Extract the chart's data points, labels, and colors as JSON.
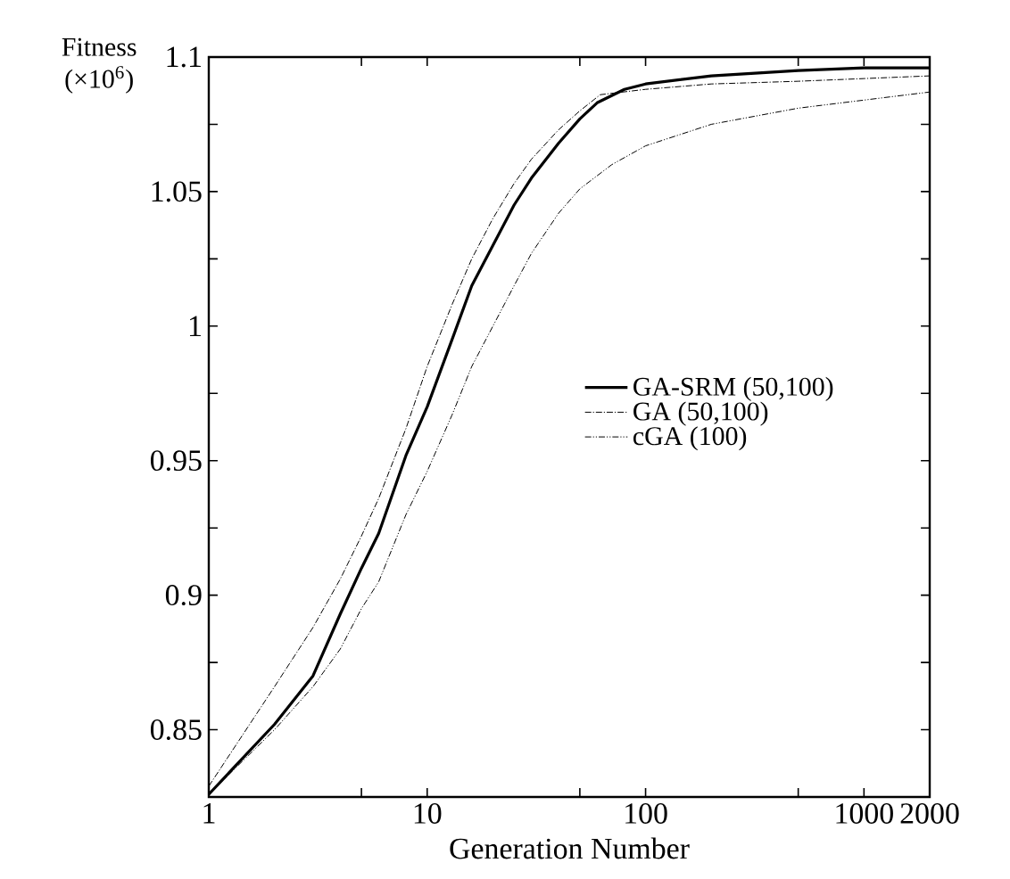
{
  "chart_data": {
    "type": "line",
    "xlabel": "Generation Number",
    "ylabel": "Fitness (×10$^{6}$)",
    "log": "x",
    "xlim": [
      1,
      2000
    ],
    "ylim": [
      0.825,
      1.1
    ],
    "xticks": [
      1,
      {
        "value": 5,
        "label": null
      },
      10,
      {
        "value": 50,
        "label": null
      },
      100,
      {
        "value": 500,
        "label": null
      },
      1000,
      2000
    ],
    "yticks": [
      {
        "value": 0.825,
        "label": null
      },
      0.85,
      {
        "value": 0.875,
        "label": null
      },
      0.9,
      {
        "value": 0.925,
        "label": null
      },
      0.95,
      {
        "value": 0.975,
        "label": null
      },
      1,
      {
        "value": 1.025,
        "label": null
      },
      1.05,
      {
        "value": 1.075,
        "label": null
      },
      1.1
    ],
    "legend": "right",
    "grid": false,
    "marker": "none",
    "series": [
      {
        "name": "GA-SRM (50,100)",
        "color": "#000000",
        "line_style": "solid",
        "x": [
          1,
          2,
          3,
          4,
          5,
          6,
          8,
          10,
          13,
          16,
          20,
          25,
          30,
          40,
          50,
          60,
          80,
          100,
          200,
          500,
          1000,
          2000
        ],
        "values": [
          0.826,
          0.852,
          0.87,
          0.893,
          0.91,
          0.923,
          0.952,
          0.97,
          0.995,
          1.015,
          1.03,
          1.045,
          1.055,
          1.068,
          1.077,
          1.083,
          1.088,
          1.09,
          1.093,
          1.095,
          1.096,
          1.096
        ]
      },
      {
        "name": "GA (50,100)",
        "color": "#000000",
        "line_style": "dashed",
        "x": [
          1,
          2,
          3,
          4,
          5,
          6,
          8,
          10,
          13,
          16,
          20,
          25,
          30,
          40,
          50,
          62,
          100,
          200,
          500,
          1000,
          2000
        ],
        "values": [
          0.829,
          0.866,
          0.888,
          0.906,
          0.922,
          0.936,
          0.962,
          0.985,
          1.008,
          1.025,
          1.04,
          1.053,
          1.062,
          1.073,
          1.08,
          1.086,
          1.088,
          1.09,
          1.091,
          1.092,
          1.093
        ]
      },
      {
        "name": "cGA (100)",
        "color": "#000000",
        "line_style": "dotted",
        "x": [
          1,
          2,
          3,
          4,
          5,
          6,
          8,
          10,
          13,
          16,
          20,
          25,
          30,
          40,
          50,
          70,
          100,
          200,
          500,
          1000,
          2000
        ],
        "values": [
          0.826,
          0.85,
          0.866,
          0.88,
          0.895,
          0.905,
          0.93,
          0.946,
          0.967,
          0.985,
          1.0,
          1.015,
          1.027,
          1.042,
          1.051,
          1.06,
          1.067,
          1.075,
          1.081,
          1.084,
          1.087
        ]
      }
    ]
  }
}
